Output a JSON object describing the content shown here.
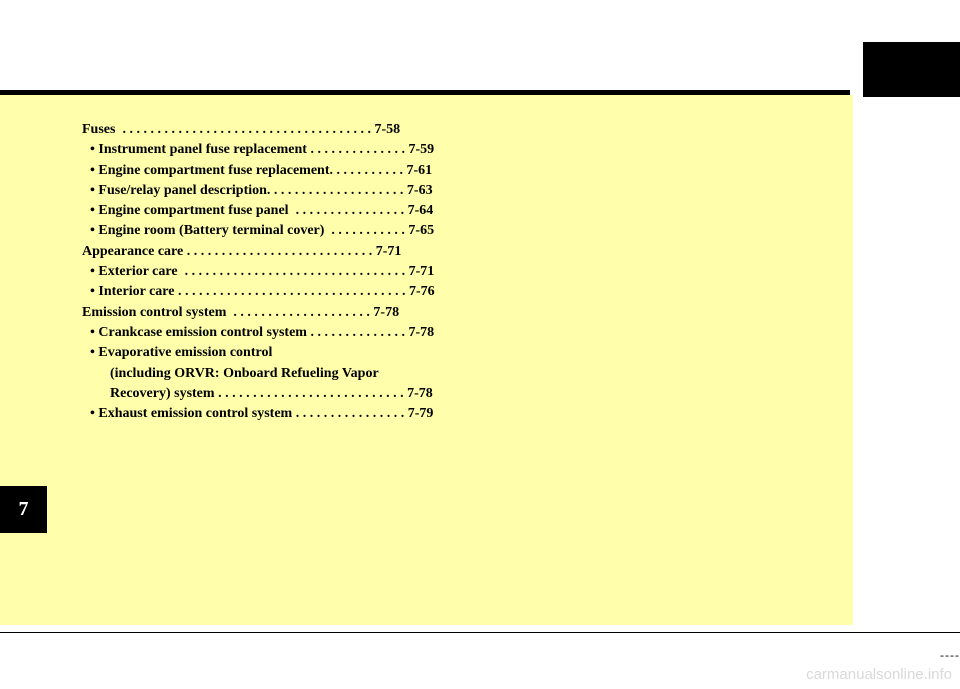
{
  "toc": {
    "lines": [
      {
        "text": "Fuses  . . . . . . . . . . . . . . . . . . . . . . . . . . . . . . . . . . . . 7-58",
        "cls": ""
      },
      {
        "text": "• Instrument panel fuse replacement . . . . . . . . . . . . . . 7-59",
        "cls": "sub"
      },
      {
        "text": "• Engine compartment fuse replacement. . . . . . . . . . . 7-61",
        "cls": "sub"
      },
      {
        "text": "• Fuse/relay panel description. . . . . . . . . . . . . . . . . . . . 7-63",
        "cls": "sub"
      },
      {
        "text": "• Engine compartment fuse panel  . . . . . . . . . . . . . . . . 7-64",
        "cls": "sub"
      },
      {
        "text": "• Engine room (Battery terminal cover)  . . . . . . . . . . . 7-65",
        "cls": "sub"
      },
      {
        "text": "Appearance care . . . . . . . . . . . . . . . . . . . . . . . . . . . 7-71",
        "cls": ""
      },
      {
        "text": "• Exterior care  . . . . . . . . . . . . . . . . . . . . . . . . . . . . . . . . 7-71",
        "cls": "sub"
      },
      {
        "text": "• Interior care . . . . . . . . . . . . . . . . . . . . . . . . . . . . . . . . . 7-76",
        "cls": "sub"
      },
      {
        "text": "Emission control system  . . . . . . . . . . . . . . . . . . . . 7-78",
        "cls": ""
      },
      {
        "text": "• Crankcase emission control system . . . . . . . . . . . . . . 7-78",
        "cls": "sub"
      },
      {
        "text": "• Evaporative emission control",
        "cls": "sub"
      },
      {
        "text": "(including ORVR: Onboard Refueling Vapor",
        "cls": "sub2"
      },
      {
        "text": "Recovery) system . . . . . . . . . . . . . . . . . . . . . . . . . . . 7-78",
        "cls": "sub2"
      },
      {
        "text": "• Exhaust emission control system . . . . . . . . . . . . . . . . 7-79",
        "cls": "sub"
      }
    ]
  },
  "section_tab": "7",
  "dashes": "----",
  "watermark": "carmanualsonline.info",
  "colors": {
    "yellow_bg": "#ffffab",
    "black": "#000000",
    "white": "#ffffff",
    "watermark_gray": "#d9d9d9"
  }
}
